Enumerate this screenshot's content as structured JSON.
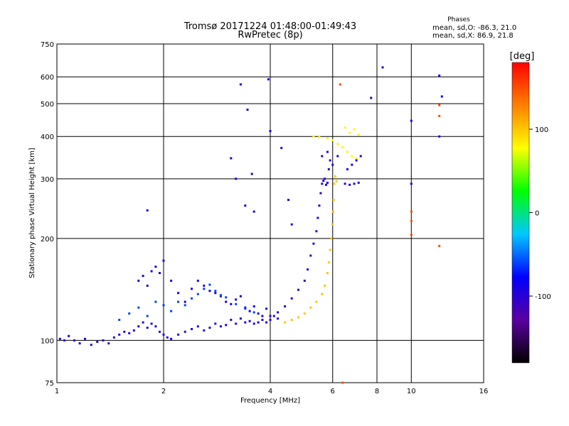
{
  "header": {
    "title_line1": "Tromsø 20171224 01:48:00-01:49:43",
    "title_line2": "RwPretec (8p)",
    "phase_label": "Phases",
    "phase_o": "mean, sd,O: -86.3, 21.0",
    "phase_x": "mean, sd,X:  86.9, 21.8"
  },
  "chart_data": {
    "type": "scatter",
    "xlabel": "Frequency [MHz]",
    "ylabel": "Stationary phase Virtual Height [km]",
    "xscale": "log",
    "yscale": "log",
    "xlim": [
      1,
      16
    ],
    "ylim": [
      75,
      750
    ],
    "x_ticks": [
      1,
      2,
      4,
      6,
      8,
      10,
      16
    ],
    "x_tick_labels": [
      "1",
      "2",
      "4",
      "6",
      "8",
      "10",
      "16"
    ],
    "y_ticks": [
      75,
      100,
      200,
      300,
      400,
      500,
      600,
      750
    ],
    "y_tick_labels": [
      "75",
      "100",
      "200",
      "300",
      "400",
      "500",
      "600",
      "750"
    ],
    "grid": true,
    "colorbar": {
      "label": "[deg]",
      "range": [
        -180,
        180
      ],
      "ticks": [
        100,
        0,
        -100
      ],
      "tick_labels": [
        "100",
        "0",
        "-100"
      ],
      "colors": [
        "#000000",
        "#5a00a0",
        "#0000ff",
        "#00c8ff",
        "#00ff00",
        "#ffff00",
        "#ff8000",
        "#ff0000"
      ]
    },
    "series": [
      {
        "values": [
          [
            1.02,
            101
          ],
          [
            1.05,
            100
          ],
          [
            1.08,
            103
          ],
          [
            1.12,
            100
          ],
          [
            1.16,
            98
          ],
          [
            1.2,
            101
          ],
          [
            1.25,
            97
          ],
          [
            1.3,
            99
          ],
          [
            1.35,
            100
          ],
          [
            1.4,
            98
          ],
          [
            1.45,
            102
          ],
          [
            1.5,
            104
          ],
          [
            1.55,
            106
          ],
          [
            1.6,
            105
          ],
          [
            1.65,
            107
          ],
          [
            1.7,
            110
          ],
          [
            1.75,
            113
          ],
          [
            1.8,
            109
          ],
          [
            1.85,
            112
          ],
          [
            1.9,
            110
          ],
          [
            1.95,
            106
          ],
          [
            2.0,
            104
          ],
          [
            2.05,
            102
          ],
          [
            2.1,
            101
          ],
          [
            2.2,
            104
          ],
          [
            2.3,
            106
          ],
          [
            2.4,
            108
          ],
          [
            2.5,
            110
          ],
          [
            2.6,
            107
          ],
          [
            2.7,
            109
          ],
          [
            2.8,
            112
          ],
          [
            2.9,
            110
          ],
          [
            3.0,
            111
          ],
          [
            3.1,
            115
          ],
          [
            3.2,
            112
          ],
          [
            3.3,
            116
          ],
          [
            3.4,
            113
          ],
          [
            3.5,
            114
          ],
          [
            3.6,
            112
          ],
          [
            3.7,
            113
          ],
          [
            3.8,
            115
          ],
          [
            3.9,
            113
          ],
          [
            4.0,
            115
          ],
          [
            4.1,
            118
          ],
          [
            4.2,
            116
          ]
        ],
        "phase": -100
      },
      {
        "values": [
          [
            1.7,
            150
          ],
          [
            1.75,
            155
          ],
          [
            1.8,
            145
          ],
          [
            1.85,
            160
          ],
          [
            1.9,
            165
          ],
          [
            1.95,
            158
          ],
          [
            2.0,
            172
          ],
          [
            2.1,
            150
          ],
          [
            2.2,
            138
          ],
          [
            2.3,
            130
          ],
          [
            2.4,
            142
          ],
          [
            2.5,
            150
          ],
          [
            2.6,
            145
          ],
          [
            2.7,
            140
          ],
          [
            2.8,
            138
          ],
          [
            2.9,
            135
          ],
          [
            3.0,
            130
          ],
          [
            3.1,
            128
          ],
          [
            3.2,
            132
          ],
          [
            3.3,
            135
          ],
          [
            3.4,
            125
          ],
          [
            3.5,
            122
          ],
          [
            3.6,
            126
          ],
          [
            3.7,
            120
          ],
          [
            3.8,
            118
          ],
          [
            3.9,
            124
          ]
        ],
        "phase": -90
      },
      {
        "values": [
          [
            1.5,
            115
          ],
          [
            1.6,
            120
          ],
          [
            1.7,
            125
          ],
          [
            1.8,
            118
          ],
          [
            1.9,
            130
          ],
          [
            2.0,
            127
          ],
          [
            2.1,
            122
          ],
          [
            2.2,
            130
          ],
          [
            2.3,
            127
          ],
          [
            2.4,
            133
          ],
          [
            2.5,
            137
          ],
          [
            2.6,
            142
          ],
          [
            2.7,
            146
          ],
          [
            2.8,
            140
          ],
          [
            2.9,
            136
          ],
          [
            3.0,
            134
          ],
          [
            3.2,
            128
          ],
          [
            3.4,
            124
          ],
          [
            3.6,
            121
          ]
        ],
        "phase": -60
      },
      {
        "values": [
          [
            4.0,
            118
          ],
          [
            4.2,
            121
          ],
          [
            4.4,
            126
          ],
          [
            4.6,
            133
          ],
          [
            4.8,
            141
          ],
          [
            5.0,
            150
          ],
          [
            5.1,
            162
          ],
          [
            5.2,
            178
          ],
          [
            5.3,
            193
          ],
          [
            5.4,
            210
          ],
          [
            5.45,
            230
          ],
          [
            5.5,
            250
          ],
          [
            5.55,
            272
          ],
          [
            5.6,
            290
          ],
          [
            5.65,
            296
          ],
          [
            5.7,
            300
          ],
          [
            5.75,
            288
          ],
          [
            5.8,
            292
          ],
          [
            5.85,
            320
          ],
          [
            5.9,
            340
          ]
        ],
        "phase": -100
      },
      {
        "values": [
          [
            4.4,
            113
          ],
          [
            4.6,
            115
          ],
          [
            4.8,
            117
          ],
          [
            5.0,
            120
          ],
          [
            5.2,
            125
          ],
          [
            5.4,
            130
          ],
          [
            5.6,
            137
          ],
          [
            5.7,
            145
          ],
          [
            5.8,
            158
          ],
          [
            5.85,
            170
          ],
          [
            5.9,
            185
          ],
          [
            5.95,
            200
          ],
          [
            6.0,
            220
          ],
          [
            6.02,
            240
          ],
          [
            6.04,
            260
          ],
          [
            6.06,
            290
          ],
          [
            6.1,
            305
          ],
          [
            6.15,
            295
          ]
        ],
        "phase": 100
      },
      {
        "values": [
          [
            5.3,
            400
          ],
          [
            5.5,
            398
          ],
          [
            5.8,
            395
          ],
          [
            6.0,
            390
          ],
          [
            6.2,
            380
          ],
          [
            6.4,
            372
          ],
          [
            6.6,
            360
          ],
          [
            6.8,
            350
          ],
          [
            7.0,
            345
          ],
          [
            6.9,
            420
          ],
          [
            7.1,
            405
          ],
          [
            6.7,
            410
          ],
          [
            6.5,
            425
          ]
        ],
        "phase": 80
      },
      {
        "values": [
          [
            6.5,
            290
          ],
          [
            6.7,
            288
          ],
          [
            6.9,
            290
          ],
          [
            7.1,
            292
          ],
          [
            6.6,
            320
          ],
          [
            6.8,
            330
          ],
          [
            7.0,
            340
          ],
          [
            7.2,
            350
          ],
          [
            6.2,
            350
          ],
          [
            6.0,
            330
          ],
          [
            5.6,
            350
          ],
          [
            5.8,
            360
          ]
        ],
        "phase": -100
      },
      {
        "values": [
          [
            3.3,
            570
          ],
          [
            3.45,
            480
          ],
          [
            3.55,
            310
          ],
          [
            3.4,
            250
          ],
          [
            3.6,
            240
          ],
          [
            3.95,
            590
          ],
          [
            4.0,
            415
          ],
          [
            4.3,
            370
          ],
          [
            4.5,
            260
          ],
          [
            4.6,
            220
          ],
          [
            3.2,
            300
          ],
          [
            3.1,
            345
          ],
          [
            1.8,
            242
          ],
          [
            8.3,
            640
          ],
          [
            7.7,
            520
          ],
          [
            10.0,
            445
          ],
          [
            10.0,
            290
          ],
          [
            12.0,
            605
          ],
          [
            12.2,
            525
          ],
          [
            12.0,
            400
          ]
        ],
        "phase": -90
      },
      {
        "values": [
          [
            10.0,
            240
          ],
          [
            10.0,
            225
          ],
          [
            10.0,
            205
          ],
          [
            12.0,
            495
          ],
          [
            12.0,
            460
          ],
          [
            12.0,
            190
          ],
          [
            6.3,
            570
          ],
          [
            6.4,
            75
          ]
        ],
        "phase": 150
      }
    ]
  }
}
